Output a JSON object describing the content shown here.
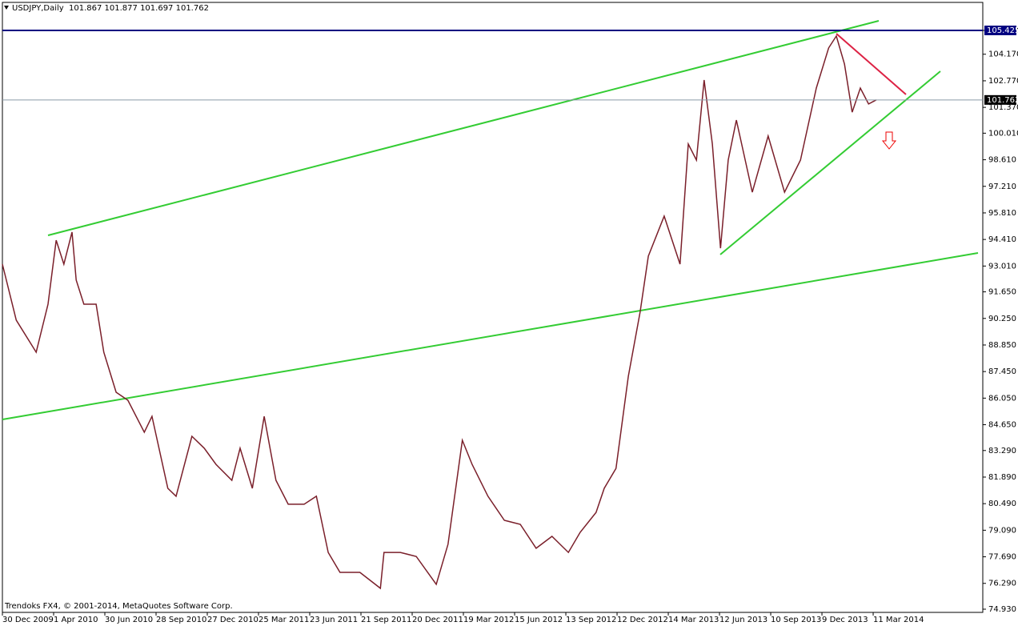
{
  "chart_data": {
    "type": "line",
    "title": "USDJPY,Daily",
    "quote": "101.867 101.877 101.697 101.762",
    "footer": "Trendoks FX4, © 2001-2014, MetaQuotes Software Corp.",
    "xticks": [
      {
        "value": 0,
        "label": "30 Dec 2009"
      },
      {
        "value": 1,
        "label": "1 Apr 2010"
      },
      {
        "value": 2,
        "label": "30 Jun 2010"
      },
      {
        "value": 3,
        "label": "28 Sep 2010"
      },
      {
        "value": 4,
        "label": "27 Dec 2010"
      },
      {
        "value": 5,
        "label": "25 Mar 2011"
      },
      {
        "value": 6,
        "label": "23 Jun 2011"
      },
      {
        "value": 7,
        "label": "21 Sep 2011"
      },
      {
        "value": 8,
        "label": "20 Dec 2011"
      },
      {
        "value": 9,
        "label": "19 Mar 2012"
      },
      {
        "value": 10,
        "label": "15 Jun 2012"
      },
      {
        "value": 11,
        "label": "13 Sep 2012"
      },
      {
        "value": 12,
        "label": "12 Dec 2012"
      },
      {
        "value": 13,
        "label": "14 Mar 2013"
      },
      {
        "value": 14,
        "label": "12 Jun 2013"
      },
      {
        "value": 15,
        "label": "10 Sep 2013"
      },
      {
        "value": 16,
        "label": "9 Dec 2013"
      },
      {
        "value": 17,
        "label": "11 Mar 2014"
      }
    ],
    "xlim": [
      0,
      19.14
    ],
    "ylim": [
      74.761,
      106.901
    ],
    "yticks": [
      105.425,
      {
        "value": 104.17,
        "label": "104.170"
      },
      {
        "value": 102.77,
        "label": "102.770"
      },
      {
        "value": 101.37,
        "label": "101.370"
      },
      {
        "value": 100.01,
        "label": "100.010"
      },
      {
        "value": 98.61,
        "label": "98.610"
      },
      {
        "value": 97.21,
        "label": "97.210"
      },
      {
        "value": 95.81,
        "label": "95.810"
      },
      {
        "value": 94.41,
        "label": "94.410"
      },
      {
        "value": 93.01,
        "label": "93.010"
      },
      {
        "value": 91.65,
        "label": "91.650"
      },
      {
        "value": 90.25,
        "label": "90.250"
      },
      {
        "value": 88.85,
        "label": "88.850"
      },
      {
        "value": 87.45,
        "label": "87.450"
      },
      {
        "value": 86.05,
        "label": "86.050"
      },
      {
        "value": 84.65,
        "label": "84.650"
      },
      {
        "value": 83.29,
        "label": "83.290"
      },
      {
        "value": 81.89,
        "label": "81.890"
      },
      {
        "value": 80.49,
        "label": "80.490"
      },
      {
        "value": 79.09,
        "label": "79.090"
      },
      {
        "value": 77.69,
        "label": "77.690"
      },
      {
        "value": 76.29,
        "label": "76.290"
      },
      {
        "value": 74.93,
        "label": "74.930"
      }
    ],
    "levels": [
      {
        "value": 105.425,
        "color": "#000080"
      },
      {
        "value": 101.762,
        "color": "#8a9aa8"
      }
    ],
    "series": [
      {
        "name": "USDJPY",
        "color": "#7a1f2a",
        "x": [
          0,
          0.27,
          0.66,
          0.89,
          1.05,
          1.2,
          1.36,
          1.44,
          1.59,
          1.83,
          1.98,
          2.22,
          2.45,
          2.77,
          2.92,
          3.23,
          3.39,
          3.7,
          3.94,
          4.17,
          4.48,
          4.64,
          4.88,
          5.11,
          5.34,
          5.58,
          5.89,
          6.13,
          6.36,
          6.59,
          6.98,
          7.38,
          7.45,
          7.77,
          8.08,
          8.47,
          8.7,
          8.98,
          9.17,
          9.48,
          9.8,
          10.11,
          10.42,
          10.73,
          11.05,
          11.28,
          11.59,
          11.75,
          11.98,
          12.22,
          12.45,
          12.61,
          12.92,
          13.23,
          13.39,
          13.55,
          13.7,
          13.86,
          14.02,
          14.17,
          14.33,
          14.64,
          14.95,
          15.27,
          15.58,
          15.89,
          16.13,
          16.28,
          16.44,
          16.59,
          16.75,
          16.91,
          17.06
        ],
        "values": [
          93.11,
          90.16,
          88.47,
          91.0,
          94.37,
          93.11,
          94.8,
          92.27,
          91.0,
          91.0,
          88.47,
          86.36,
          85.94,
          84.25,
          85.09,
          81.3,
          80.88,
          84.04,
          83.41,
          82.56,
          81.72,
          83.41,
          81.3,
          85.09,
          81.72,
          80.46,
          80.46,
          80.88,
          77.92,
          76.87,
          76.87,
          76.03,
          77.92,
          77.92,
          77.71,
          76.24,
          78.35,
          83.83,
          82.56,
          80.88,
          79.61,
          79.4,
          78.14,
          78.77,
          77.92,
          78.98,
          80.03,
          81.3,
          82.35,
          87.2,
          90.58,
          93.53,
          95.64,
          93.11,
          99.44,
          98.59,
          102.81,
          99.44,
          93.95,
          98.59,
          100.7,
          96.9,
          99.86,
          96.9,
          98.59,
          102.39,
          104.5,
          105.13,
          103.65,
          101.12,
          102.39,
          101.55,
          101.762
        ]
      }
    ]
  }
}
